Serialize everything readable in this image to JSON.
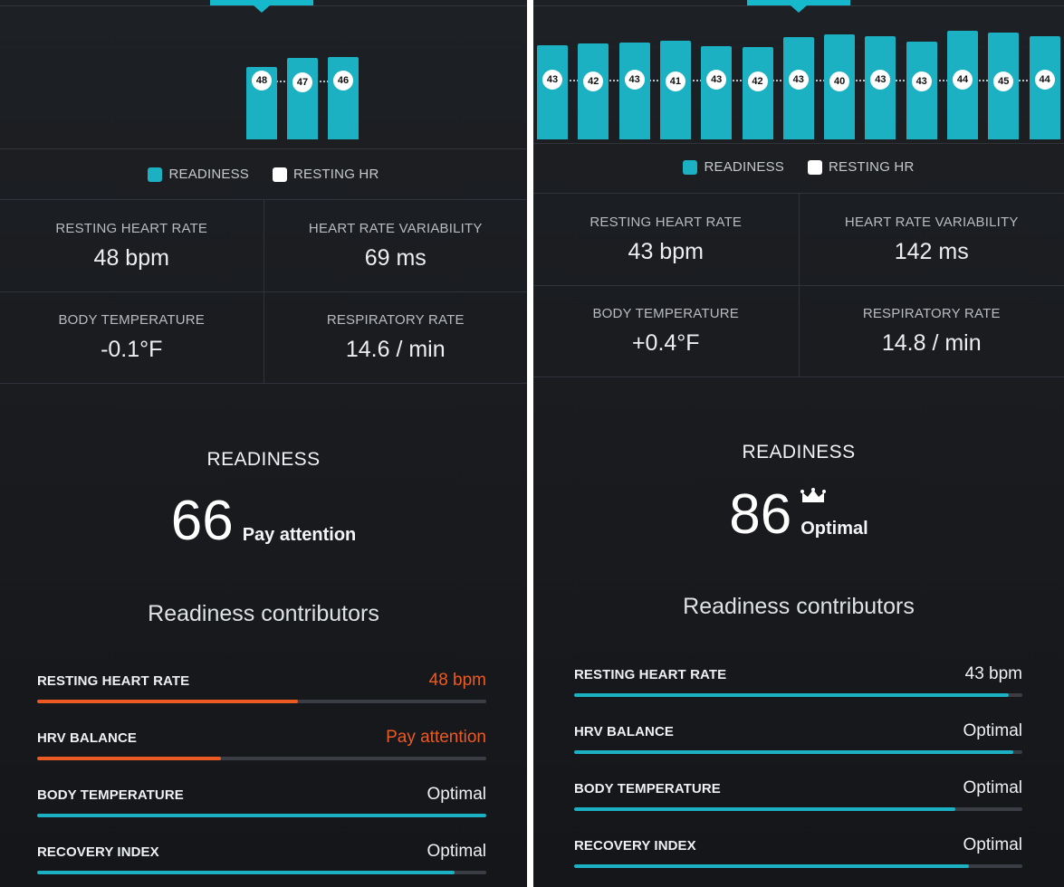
{
  "colors": {
    "accent": "#1bb1c2",
    "warning": "#ec5a24",
    "background": "#1a1c20",
    "track": "#3a3e44"
  },
  "panels": [
    {
      "chart": {
        "bars": [
          {
            "value": 48,
            "height": 0.7
          },
          {
            "value": 47,
            "height": 0.79
          },
          {
            "value": 46,
            "height": 0.8
          }
        ],
        "label_line_y": 0.43
      },
      "legend": [
        {
          "label": "READINESS",
          "color": "#1bb1c2"
        },
        {
          "label": "RESTING HR",
          "color": "#ffffff"
        }
      ],
      "metrics": [
        {
          "label": "RESTING HEART RATE",
          "value": "48 bpm"
        },
        {
          "label": "HEART RATE VARIABILITY",
          "value": "69 ms"
        },
        {
          "label": "BODY TEMPERATURE",
          "value": "-0.1°F"
        },
        {
          "label": "RESPIRATORY RATE",
          "value": "14.6 / min"
        }
      ],
      "readiness": {
        "title": "READINESS",
        "score": "66",
        "status": "Pay attention",
        "crown": false
      },
      "contributors_title": "Readiness contributors",
      "contributors": [
        {
          "label": "RESTING HEART RATE",
          "value": "48 bpm",
          "level": 0.58,
          "state": "warn"
        },
        {
          "label": "HRV BALANCE",
          "value": "Pay attention",
          "level": 0.41,
          "state": "warn"
        },
        {
          "label": "BODY TEMPERATURE",
          "value": "Optimal",
          "level": 1.0,
          "state": "ok"
        },
        {
          "label": "RECOVERY INDEX",
          "value": "Optimal",
          "level": 0.93,
          "state": "ok"
        }
      ]
    },
    {
      "chart": {
        "bars": [
          {
            "value": 43,
            "height": 0.87
          },
          {
            "value": 42,
            "height": 0.88
          },
          {
            "value": 43,
            "height": 0.89
          },
          {
            "value": 41,
            "height": 0.91
          },
          {
            "value": 43,
            "height": 0.86
          },
          {
            "value": 42,
            "height": 0.85
          },
          {
            "value": 43,
            "height": 0.94
          },
          {
            "value": 40,
            "height": 0.97
          },
          {
            "value": 43,
            "height": 0.95
          },
          {
            "value": 43,
            "height": 0.9
          },
          {
            "value": 44,
            "height": 1.0
          },
          {
            "value": 45,
            "height": 0.98
          },
          {
            "value": 44,
            "height": 0.95
          }
        ],
        "label_line_y": 0.45
      },
      "legend": [
        {
          "label": "READINESS",
          "color": "#1bb1c2"
        },
        {
          "label": "RESTING HR",
          "color": "#ffffff"
        }
      ],
      "metrics": [
        {
          "label": "RESTING HEART RATE",
          "value": "43 bpm"
        },
        {
          "label": "HEART RATE VARIABILITY",
          "value": "142 ms"
        },
        {
          "label": "BODY TEMPERATURE",
          "value": "+0.4°F"
        },
        {
          "label": "RESPIRATORY RATE",
          "value": "14.8 / min"
        }
      ],
      "readiness": {
        "title": "READINESS",
        "score": "86",
        "status": "Optimal",
        "crown": true
      },
      "contributors_title": "Readiness contributors",
      "contributors": [
        {
          "label": "RESTING HEART RATE",
          "value": "43 bpm",
          "level": 0.97,
          "state": "ok"
        },
        {
          "label": "HRV BALANCE",
          "value": "Optimal",
          "level": 0.98,
          "state": "ok"
        },
        {
          "label": "BODY TEMPERATURE",
          "value": "Optimal",
          "level": 0.85,
          "state": "ok"
        },
        {
          "label": "RECOVERY INDEX",
          "value": "Optimal",
          "level": 0.88,
          "state": "ok"
        }
      ]
    }
  ]
}
